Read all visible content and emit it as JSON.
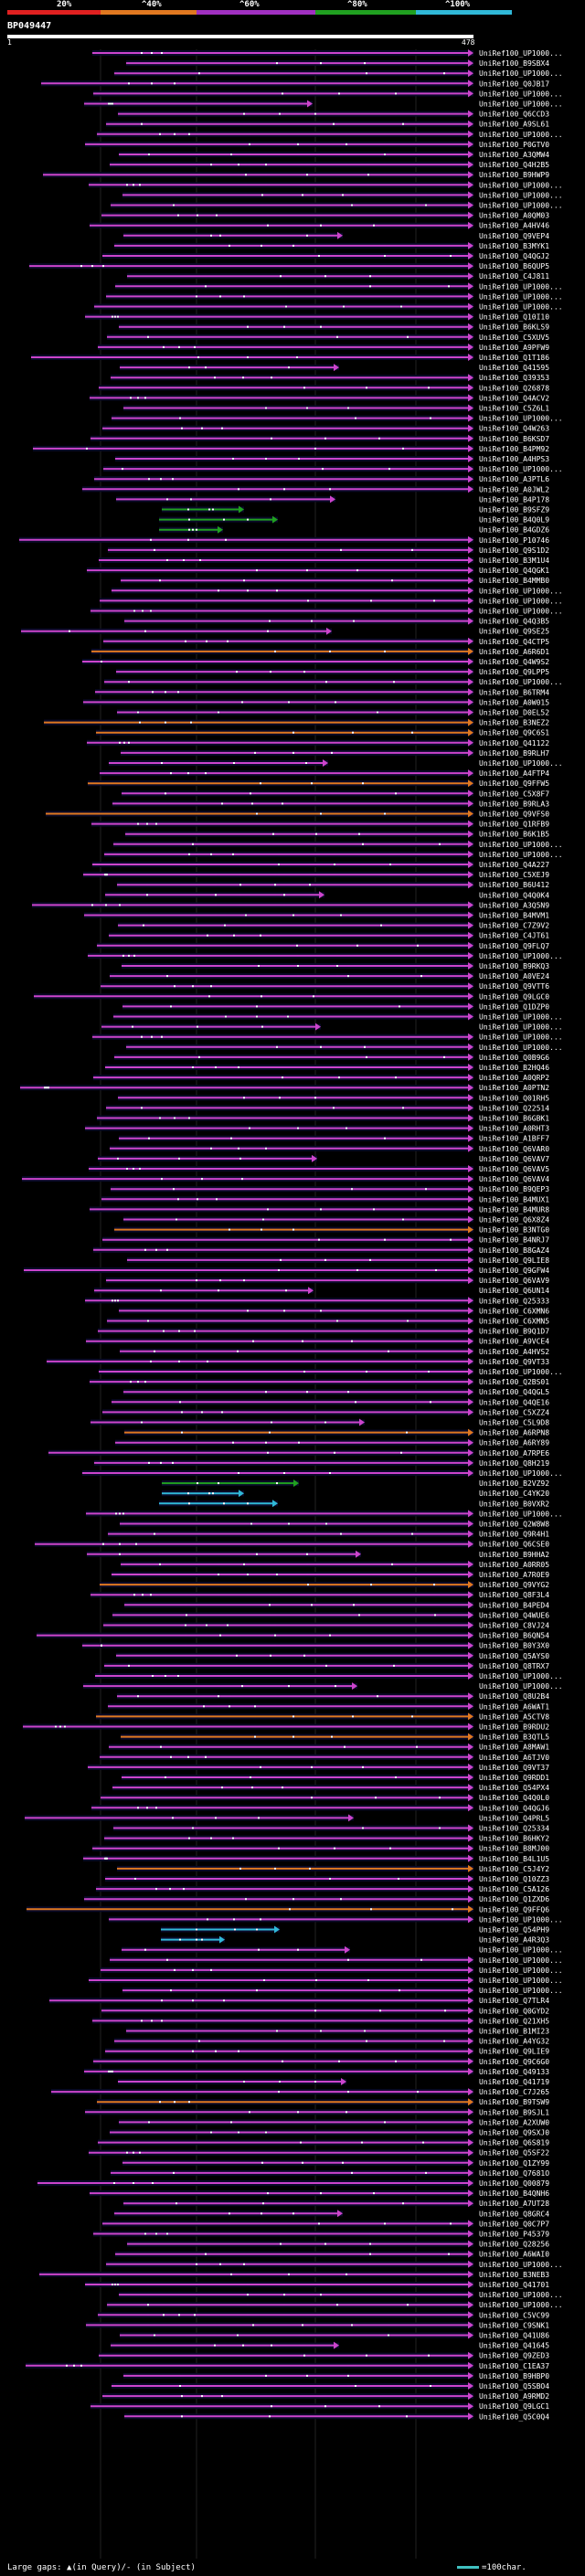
{
  "legend": {
    "labels": [
      "20%",
      "^40%",
      "^60%",
      "^80%",
      "^100%"
    ],
    "colors": [
      "#e02020",
      "#e07820",
      "#a030c0",
      "#20a020",
      "#30b8d8"
    ]
  },
  "query": {
    "name": "BP049447",
    "start": "1",
    "end": "478"
  },
  "colors": {
    "background": "#000000",
    "track": "#0a0a28",
    "cls20": "#e02020",
    "cls40": "#e07820",
    "cls60": "#cc44cc",
    "cls80": "#20a020",
    "cls100": "#30b8d8",
    "label": "#ffffff"
  },
  "hits": [
    {
      "label": "UniRef100_UP1000...",
      "class": "cls60"
    },
    {
      "label": "UniRef100_B9SBX4",
      "class": "cls60"
    },
    {
      "label": "UniRef100_UP1000...",
      "class": "cls60"
    },
    {
      "label": "UniRef100_Q0JB17",
      "class": "cls60"
    },
    {
      "label": "UniRef100_UP1000...",
      "class": "cls60"
    },
    {
      "label": "UniRef100_UP1000...",
      "class": "cls60"
    },
    {
      "label": "UniRef100_Q6CCD3",
      "class": "cls60"
    },
    {
      "label": "UniRef100_A9SL61",
      "class": "cls60"
    },
    {
      "label": "UniRef100_UP1000...",
      "class": "cls60"
    },
    {
      "label": "UniRef100_P0GTV0",
      "class": "cls60"
    },
    {
      "label": "UniRef100_A3QMW4",
      "class": "cls60"
    },
    {
      "label": "UniRef100_Q4H2B5",
      "class": "cls60"
    },
    {
      "label": "UniRef100_B9HWP9",
      "class": "cls60"
    },
    {
      "label": "UniRef100_UP1000...",
      "class": "cls60"
    },
    {
      "label": "UniRef100_UP1000...",
      "class": "cls60"
    },
    {
      "label": "UniRef100_UP1000...",
      "class": "cls60"
    },
    {
      "label": "UniRef100_A0QM03",
      "class": "cls60"
    },
    {
      "label": "UniRef100_A4HV46",
      "class": "cls60"
    },
    {
      "label": "UniRef100_Q9VEP4",
      "class": "cls60"
    },
    {
      "label": "UniRef100_B3MYK1",
      "class": "cls60"
    },
    {
      "label": "UniRef100_Q4QGJ2",
      "class": "cls60"
    },
    {
      "label": "UniRef100_B6QUP5",
      "class": "cls60"
    },
    {
      "label": "UniRef100_C4J811",
      "class": "cls60"
    },
    {
      "label": "UniRef100_UP1000...",
      "class": "cls60"
    },
    {
      "label": "UniRef100_UP1000...",
      "class": "cls60"
    },
    {
      "label": "UniRef100_UP1000...",
      "class": "cls60"
    },
    {
      "label": "UniRef100_Q10I10",
      "class": "cls60"
    },
    {
      "label": "UniRef100_B6KLS9",
      "class": "cls60"
    },
    {
      "label": "UniRef100_C5XUV5",
      "class": "cls60"
    },
    {
      "label": "UniRef100_A9PFW9",
      "class": "cls60"
    },
    {
      "label": "UniRef100_Q1T186",
      "class": "cls60"
    },
    {
      "label": "UniRef100_Q41595",
      "class": "cls60"
    },
    {
      "label": "UniRef100_Q39353",
      "class": "cls60"
    },
    {
      "label": "UniRef100_Q26878",
      "class": "cls60"
    },
    {
      "label": "UniRef100_Q4ACV2",
      "class": "cls60"
    },
    {
      "label": "UniRef100_C5Z6L1",
      "class": "cls60"
    },
    {
      "label": "UniRef100_UP1000...",
      "class": "cls60"
    },
    {
      "label": "UniRef100_Q4W263",
      "class": "cls60"
    },
    {
      "label": "UniRef100_B6KSD7",
      "class": "cls60"
    },
    {
      "label": "UniRef100_B4PM92",
      "class": "cls60"
    },
    {
      "label": "UniRef100_A4HPS3",
      "class": "cls60"
    },
    {
      "label": "UniRef100_UP1000...",
      "class": "cls60"
    },
    {
      "label": "UniRef100_A3PTL6",
      "class": "cls60"
    },
    {
      "label": "UniRef100_A0JWL2",
      "class": "cls60"
    },
    {
      "label": "UniRef100_B4P178",
      "class": "cls60"
    },
    {
      "label": "UniRef100_B9SFZ9",
      "class": "cls80"
    },
    {
      "label": "UniRef100_B4Q0L9",
      "class": "cls80"
    },
    {
      "label": "UniRef100_B4GDZ6",
      "class": "cls80"
    },
    {
      "label": "UniRef100_P10746",
      "class": "cls60"
    },
    {
      "label": "UniRef100_Q9S1D2",
      "class": "cls60"
    },
    {
      "label": "UniRef100_B3M1U4",
      "class": "cls60"
    },
    {
      "label": "UniRef100_Q4QGK1",
      "class": "cls60"
    },
    {
      "label": "UniRef100_B4MMB0",
      "class": "cls60"
    },
    {
      "label": "UniRef100_UP1000...",
      "class": "cls60"
    },
    {
      "label": "UniRef100_UP1000...",
      "class": "cls60"
    },
    {
      "label": "UniRef100_UP1000...",
      "class": "cls60"
    },
    {
      "label": "UniRef100_Q4Q3B5",
      "class": "cls60"
    },
    {
      "label": "UniRef100_Q9SE25",
      "class": "cls60"
    },
    {
      "label": "UniRef100_Q4CTP5",
      "class": "cls60"
    },
    {
      "label": "UniRef100_A6R6D1",
      "class": "cls40"
    },
    {
      "label": "UniRef100_Q4W9S2",
      "class": "cls60"
    },
    {
      "label": "UniRef100_Q9LPP5",
      "class": "cls60"
    },
    {
      "label": "UniRef100_UP1000...",
      "class": "cls60"
    },
    {
      "label": "UniRef100_B6TRM4",
      "class": "cls60"
    },
    {
      "label": "UniRef100_A0W015",
      "class": "cls60"
    },
    {
      "label": "UniRef100_D0EL52",
      "class": "cls60"
    },
    {
      "label": "UniRef100_B3NEZ2",
      "class": "cls40"
    },
    {
      "label": "UniRef100_Q9C6S1",
      "class": "cls40"
    },
    {
      "label": "UniRef100_Q41122",
      "class": "cls60"
    },
    {
      "label": "UniRef100_B9RLH7",
      "class": "cls60"
    },
    {
      "label": "UniRef100_UP1000...",
      "class": "cls60"
    },
    {
      "label": "UniRef100_A4FTP4",
      "class": "cls60"
    },
    {
      "label": "UniRef100_Q9FFW5",
      "class": "cls40"
    },
    {
      "label": "UniRef100_C5X8F7",
      "class": "cls60"
    },
    {
      "label": "UniRef100_B9RLA3",
      "class": "cls60"
    },
    {
      "label": "UniRef100_Q9VFS0",
      "class": "cls40"
    },
    {
      "label": "UniRef100_Q1RFB9",
      "class": "cls60"
    },
    {
      "label": "UniRef100_B6K1B5",
      "class": "cls60"
    },
    {
      "label": "UniRef100_UP1000...",
      "class": "cls60"
    },
    {
      "label": "UniRef100_UP1000...",
      "class": "cls60"
    },
    {
      "label": "UniRef100_Q4A227",
      "class": "cls60"
    },
    {
      "label": "UniRef100_C5XEJ9",
      "class": "cls60"
    },
    {
      "label": "UniRef100_B6U412",
      "class": "cls60"
    },
    {
      "label": "UniRef100_Q4Q0K4",
      "class": "cls60"
    },
    {
      "label": "UniRef100_A3Q5N9",
      "class": "cls60"
    },
    {
      "label": "UniRef100_B4MVM1",
      "class": "cls60"
    },
    {
      "label": "UniRef100_C7Z9V2",
      "class": "cls60"
    },
    {
      "label": "UniRef100_C4JT61",
      "class": "cls60"
    },
    {
      "label": "UniRef100_Q9FLQ7",
      "class": "cls60"
    },
    {
      "label": "UniRef100_UP1000...",
      "class": "cls60"
    },
    {
      "label": "UniRef100_B9RKQ3",
      "class": "cls60"
    },
    {
      "label": "UniRef100_A0VE24",
      "class": "cls60"
    },
    {
      "label": "UniRef100_Q9VTT6",
      "class": "cls60"
    },
    {
      "label": "UniRef100_Q9LGC0",
      "class": "cls60"
    },
    {
      "label": "UniRef100_Q1DZP0",
      "class": "cls60"
    },
    {
      "label": "UniRef100_UP1000...",
      "class": "cls60"
    },
    {
      "label": "UniRef100_UP1000...",
      "class": "cls60"
    },
    {
      "label": "UniRef100_UP1000...",
      "class": "cls60"
    },
    {
      "label": "UniRef100_UP1000...",
      "class": "cls60"
    },
    {
      "label": "UniRef100_Q0B9G6",
      "class": "cls60"
    },
    {
      "label": "UniRef100_B2HQ46",
      "class": "cls60"
    },
    {
      "label": "UniRef100_A0QRP2",
      "class": "cls60"
    },
    {
      "label": "UniRef100_A0PTN2",
      "class": "cls60"
    },
    {
      "label": "UniRef100_Q01RH5",
      "class": "cls60"
    },
    {
      "label": "UniRef100_Q22514",
      "class": "cls60"
    },
    {
      "label": "UniRef100_B6GBK1",
      "class": "cls60"
    },
    {
      "label": "UniRef100_A0RHT3",
      "class": "cls60"
    },
    {
      "label": "UniRef100_A1BFF7",
      "class": "cls60"
    },
    {
      "label": "UniRef100_Q6VAR0",
      "class": "cls60"
    },
    {
      "label": "UniRef100_Q6VAV7",
      "class": "cls60"
    },
    {
      "label": "UniRef100_Q6VAV5",
      "class": "cls60"
    },
    {
      "label": "UniRef100_Q6VAV4",
      "class": "cls60"
    },
    {
      "label": "UniRef100_B9QEP3",
      "class": "cls60"
    },
    {
      "label": "UniRef100_B4MUX1",
      "class": "cls60"
    },
    {
      "label": "UniRef100_B4MUR8",
      "class": "cls60"
    },
    {
      "label": "UniRef100_Q6X8Z4",
      "class": "cls60"
    },
    {
      "label": "UniRef100_B3NTG0",
      "class": "cls40"
    },
    {
      "label": "UniRef100_B4NRJ7",
      "class": "cls60"
    },
    {
      "label": "UniRef100_B8GAZ4",
      "class": "cls60"
    },
    {
      "label": "UniRef100_Q9LIE8",
      "class": "cls60"
    },
    {
      "label": "UniRef100_Q9GFW4",
      "class": "cls60"
    },
    {
      "label": "UniRef100_Q6VAV9",
      "class": "cls60"
    },
    {
      "label": "UniRef100_Q6UN14",
      "class": "cls60"
    },
    {
      "label": "UniRef100_Q25333",
      "class": "cls60"
    },
    {
      "label": "UniRef100_C6XMN6",
      "class": "cls60"
    },
    {
      "label": "UniRef100_C6XMN5",
      "class": "cls60"
    },
    {
      "label": "UniRef100_B9Q1D7",
      "class": "cls60"
    },
    {
      "label": "UniRef100_A9VCE4",
      "class": "cls60"
    },
    {
      "label": "UniRef100_A4HVS2",
      "class": "cls60"
    },
    {
      "label": "UniRef100_Q9VT33",
      "class": "cls60"
    },
    {
      "label": "UniRef100_UP1000...",
      "class": "cls60"
    },
    {
      "label": "UniRef100_Q2BS01",
      "class": "cls60"
    },
    {
      "label": "UniRef100_Q4QGL5",
      "class": "cls60"
    },
    {
      "label": "UniRef100_Q4QE16",
      "class": "cls60"
    },
    {
      "label": "UniRef100_C5XZZ4",
      "class": "cls60"
    },
    {
      "label": "UniRef100_C5L9D8",
      "class": "cls60"
    },
    {
      "label": "UniRef100_A6RPN8",
      "class": "cls40"
    },
    {
      "label": "UniRef100_A6RY89",
      "class": "cls60"
    },
    {
      "label": "UniRef100_A7RPE6",
      "class": "cls60"
    },
    {
      "label": "UniRef100_Q8H219",
      "class": "cls60"
    },
    {
      "label": "UniRef100_UP1000...",
      "class": "cls60"
    },
    {
      "label": "UniRef100_B2VZ92",
      "class": "cls80"
    },
    {
      "label": "UniRef100_C4YK20",
      "class": "cls100"
    },
    {
      "label": "UniRef100_B0VXR2",
      "class": "cls100"
    },
    {
      "label": "UniRef100_UP1000...",
      "class": "cls60"
    },
    {
      "label": "UniRef100_Q2W8W8",
      "class": "cls60"
    },
    {
      "label": "UniRef100_Q9R4H1",
      "class": "cls60"
    },
    {
      "label": "UniRef100_Q6CSE0",
      "class": "cls60"
    },
    {
      "label": "UniRef100_B9HHA2",
      "class": "cls60"
    },
    {
      "label": "UniRef100_A0RR05",
      "class": "cls60"
    },
    {
      "label": "UniRef100_A7R0E9",
      "class": "cls60"
    },
    {
      "label": "UniRef100_Q9VYG2",
      "class": "cls40"
    },
    {
      "label": "UniRef100_Q8F3L4",
      "class": "cls60"
    },
    {
      "label": "UniRef100_B4PED4",
      "class": "cls60"
    },
    {
      "label": "UniRef100_Q4WUE6",
      "class": "cls60"
    },
    {
      "label": "UniRef100_C8VJ24",
      "class": "cls60"
    },
    {
      "label": "UniRef100_B6QN54",
      "class": "cls60"
    },
    {
      "label": "UniRef100_B0Y3X0",
      "class": "cls60"
    },
    {
      "label": "UniRef100_Q5AYS0",
      "class": "cls60"
    },
    {
      "label": "UniRef100_Q8TRX7",
      "class": "cls60"
    },
    {
      "label": "UniRef100_UP1000...",
      "class": "cls60"
    },
    {
      "label": "UniRef100_UP1000...",
      "class": "cls60"
    },
    {
      "label": "UniRef100_Q8U2B4",
      "class": "cls60"
    },
    {
      "label": "UniRef100_A6WAT1",
      "class": "cls60"
    },
    {
      "label": "UniRef100_A5CTV8",
      "class": "cls40"
    },
    {
      "label": "UniRef100_B9RDU2",
      "class": "cls60"
    },
    {
      "label": "UniRef100_B3QTL5",
      "class": "cls40"
    },
    {
      "label": "UniRef100_A8MAW1",
      "class": "cls60"
    },
    {
      "label": "UniRef100_A6TJV0",
      "class": "cls60"
    },
    {
      "label": "UniRef100_Q9VT37",
      "class": "cls60"
    },
    {
      "label": "UniRef100_Q9RDD1",
      "class": "cls60"
    },
    {
      "label": "UniRef100_Q54PX4",
      "class": "cls60"
    },
    {
      "label": "UniRef100_Q4Q0L0",
      "class": "cls60"
    },
    {
      "label": "UniRef100_Q4QGJ6",
      "class": "cls60"
    },
    {
      "label": "UniRef100_Q4PRL5",
      "class": "cls60"
    },
    {
      "label": "UniRef100_Q25334",
      "class": "cls60"
    },
    {
      "label": "UniRef100_B6HKY2",
      "class": "cls60"
    },
    {
      "label": "UniRef100_B8MJ00",
      "class": "cls60"
    },
    {
      "label": "UniRef100_B4L1U5",
      "class": "cls60"
    },
    {
      "label": "UniRef100_C5J4Y2",
      "class": "cls40"
    },
    {
      "label": "UniRef100_Q10ZZ3",
      "class": "cls60"
    },
    {
      "label": "UniRef100_C5A126",
      "class": "cls60"
    },
    {
      "label": "UniRef100_Q1ZXD6",
      "class": "cls60"
    },
    {
      "label": "UniRef100_Q9FFQ6",
      "class": "cls40"
    },
    {
      "label": "UniRef100_UP1000...",
      "class": "cls60"
    },
    {
      "label": "UniRef100_Q54PH9",
      "class": "cls100"
    },
    {
      "label": "UniRef100_A4R3Q3",
      "class": "cls100"
    },
    {
      "label": "UniRef100_UP1000...",
      "class": "cls60"
    },
    {
      "label": "UniRef100_UP1000...",
      "class": "cls60"
    },
    {
      "label": "UniRef100_UP1000...",
      "class": "cls60"
    },
    {
      "label": "UniRef100_UP1000...",
      "class": "cls60"
    },
    {
      "label": "UniRef100_UP1000...",
      "class": "cls60"
    },
    {
      "label": "UniRef100_Q7TLR4",
      "class": "cls60"
    },
    {
      "label": "UniRef100_Q0GYD2",
      "class": "cls60"
    },
    {
      "label": "UniRef100_Q21XH5",
      "class": "cls60"
    },
    {
      "label": "UniRef100_B1MI23",
      "class": "cls60"
    },
    {
      "label": "UniRef100_A4YG32",
      "class": "cls60"
    },
    {
      "label": "UniRef100_Q9LIE9",
      "class": "cls60"
    },
    {
      "label": "UniRef100_Q9C6G0",
      "class": "cls60"
    },
    {
      "label": "UniRef100_Q49133",
      "class": "cls60"
    },
    {
      "label": "UniRef100_Q41719",
      "class": "cls60"
    },
    {
      "label": "UniRef100_C7J265",
      "class": "cls60"
    },
    {
      "label": "UniRef100_B9TSW9",
      "class": "cls40"
    },
    {
      "label": "UniRef100_B9SJL1",
      "class": "cls60"
    },
    {
      "label": "UniRef100_A2XUW0",
      "class": "cls60"
    },
    {
      "label": "UniRef100_Q9SXJ0",
      "class": "cls60"
    },
    {
      "label": "UniRef100_Q6S819",
      "class": "cls60"
    },
    {
      "label": "UniRef100_Q5SF22",
      "class": "cls60"
    },
    {
      "label": "UniRef100_Q1ZY99",
      "class": "cls60"
    },
    {
      "label": "UniRef100_Q7681O",
      "class": "cls60"
    },
    {
      "label": "UniRef100_Q00879",
      "class": "cls60"
    },
    {
      "label": "UniRef100_B4QNH6",
      "class": "cls60"
    },
    {
      "label": "UniRef100_A7UT28",
      "class": "cls60"
    },
    {
      "label": "UniRef100_Q8GRC4",
      "class": "cls60"
    },
    {
      "label": "UniRef100_Q0C7P7",
      "class": "cls60"
    },
    {
      "label": "UniRef100_P45379",
      "class": "cls60"
    },
    {
      "label": "UniRef100_Q28256",
      "class": "cls60"
    },
    {
      "label": "UniRef100_A6WAI0",
      "class": "cls60"
    },
    {
      "label": "UniRef100_UP1000...",
      "class": "cls60"
    },
    {
      "label": "UniRef100_B3NEB3",
      "class": "cls60"
    },
    {
      "label": "UniRef100_Q41701",
      "class": "cls60"
    },
    {
      "label": "UniRef100_UP1000...",
      "class": "cls60"
    },
    {
      "label": "UniRef100_UP1000...",
      "class": "cls60"
    },
    {
      "label": "UniRef100_C5VC99",
      "class": "cls60"
    },
    {
      "label": "UniRef100_C9SNK1",
      "class": "cls60"
    },
    {
      "label": "UniRef100_Q41U86",
      "class": "cls60"
    },
    {
      "label": "UniRef100_Q41645",
      "class": "cls60"
    },
    {
      "label": "UniRef100_Q9ZED3",
      "class": "cls60"
    },
    {
      "label": "UniRef100_C1EA37",
      "class": "cls60"
    },
    {
      "label": "UniRef100_B9HBP0",
      "class": "cls60"
    },
    {
      "label": "UniRef100_Q5SBO4",
      "class": "cls60"
    },
    {
      "label": "UniRef100_A9RMD2",
      "class": "cls60"
    },
    {
      "label": "UniRef100_Q9LGC1",
      "class": "cls60"
    },
    {
      "label": "UniRef100_Q5C0Q4",
      "class": "cls60"
    }
  ],
  "footer": {
    "note": "Large gaps: ▲(in Query)/- (in Subject)",
    "scale": "=100char."
  }
}
